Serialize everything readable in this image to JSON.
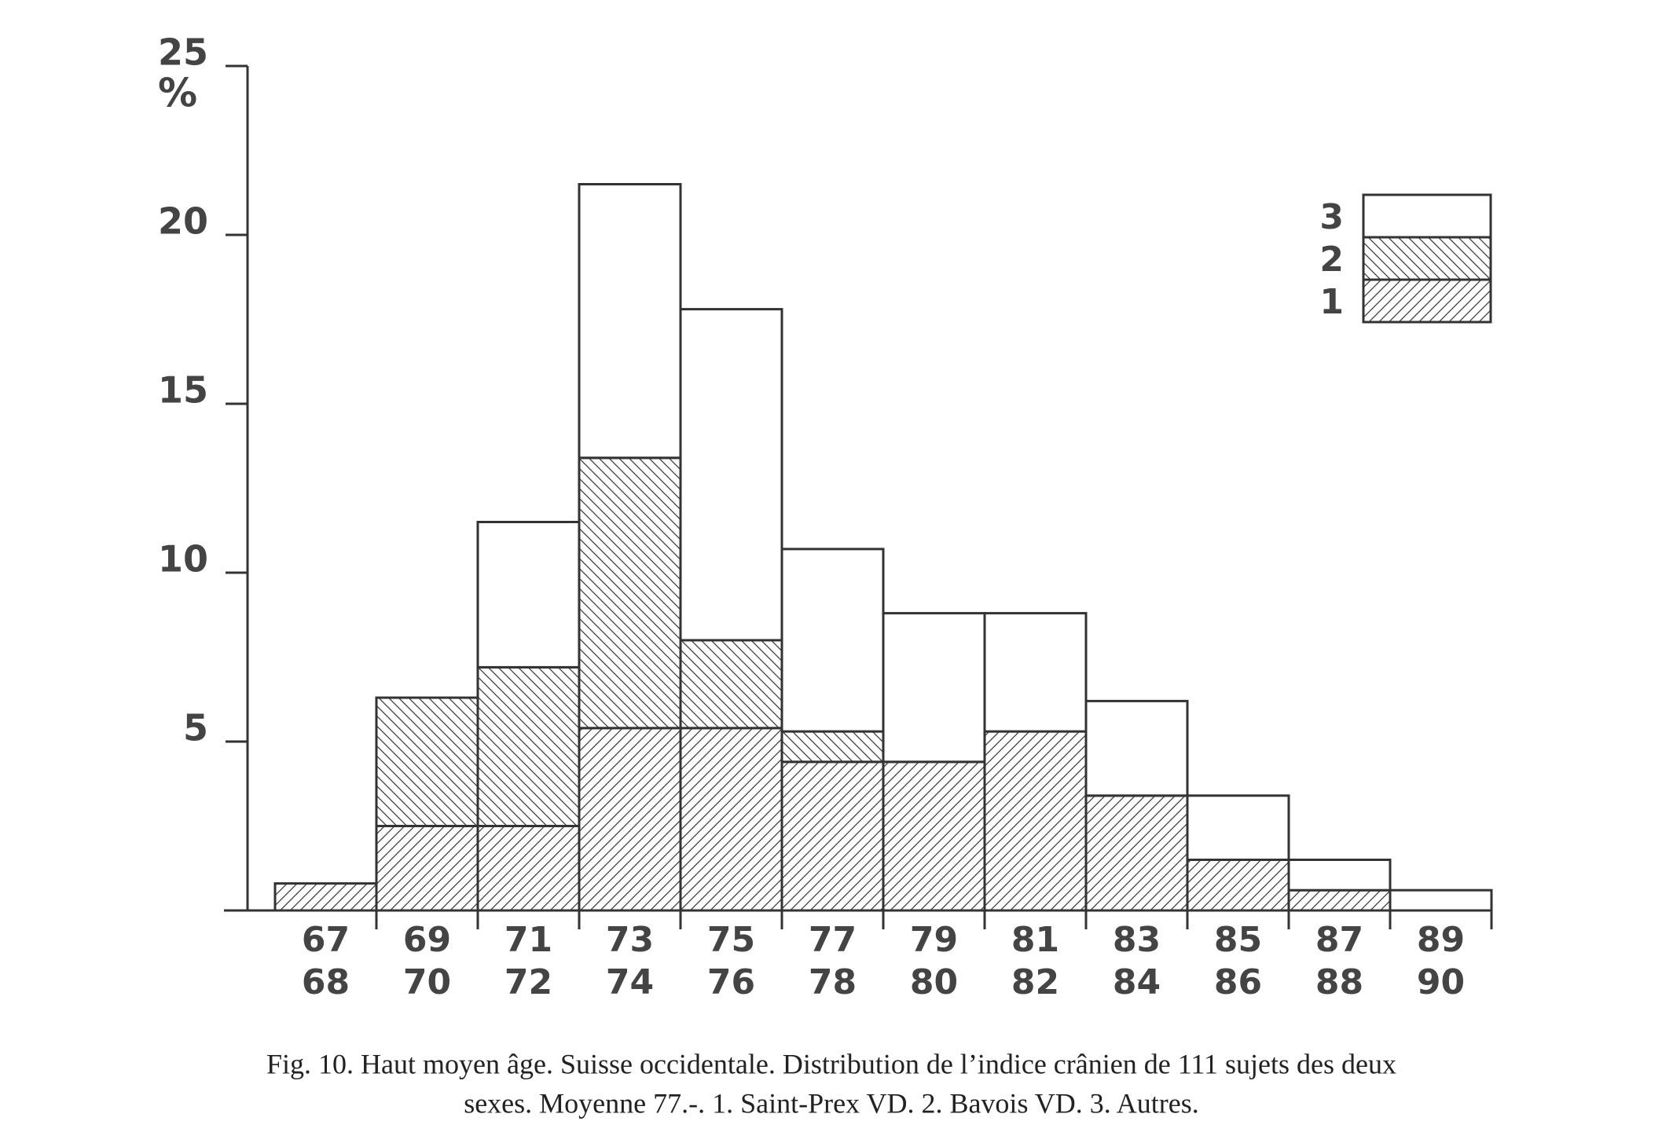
{
  "chart_data": {
    "type": "bar",
    "stacked": true,
    "y_label": "%",
    "categories": [
      [
        "67",
        "68"
      ],
      [
        "69",
        "70"
      ],
      [
        "71",
        "72"
      ],
      [
        "73",
        "74"
      ],
      [
        "75",
        "76"
      ],
      [
        "77",
        "78"
      ],
      [
        "79",
        "80"
      ],
      [
        "81",
        "82"
      ],
      [
        "83",
        "84"
      ],
      [
        "85",
        "86"
      ],
      [
        "87",
        "88"
      ],
      [
        "89",
        "90"
      ]
    ],
    "series": [
      {
        "name": "1",
        "color": "#333333",
        "hatch": "forward",
        "values": [
          0.8,
          2.5,
          2.5,
          5.4,
          5.4,
          4.4,
          4.4,
          5.3,
          3.4,
          1.5,
          0.6,
          0
        ]
      },
      {
        "name": "2",
        "color": "#333333",
        "hatch": "back",
        "values": [
          0,
          3.8,
          4.7,
          8.0,
          2.6,
          0.9,
          0,
          0,
          0,
          0,
          0,
          0
        ]
      },
      {
        "name": "3",
        "color": "#333333",
        "hatch": "none",
        "values": [
          0,
          0,
          4.3,
          8.1,
          9.8,
          5.4,
          4.4,
          3.5,
          2.8,
          1.9,
          0.9,
          0.6
        ]
      }
    ],
    "ylim": [
      0,
      25
    ],
    "yticks": [
      5,
      10,
      15,
      20,
      25
    ],
    "legend": "top-right",
    "caption": [
      "Fig. 10.  Haut moyen âge. Suisse occidentale. Distribution de l’indice crânien de 111 sujets des deux",
      "sexes. Moyenne 77.-. 1. Saint-Prex VD. 2. Bavois VD. 3. Autres."
    ]
  }
}
